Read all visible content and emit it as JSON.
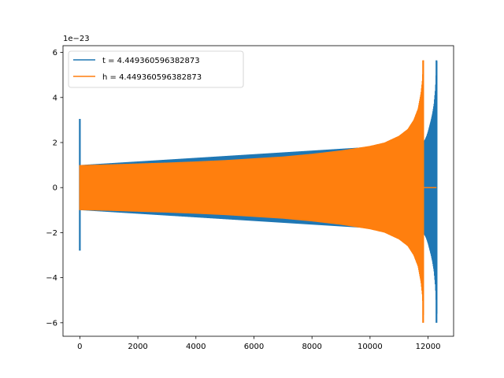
{
  "chart_data": {
    "type": "line",
    "title": "",
    "xlabel": "",
    "ylabel": "",
    "y_offset_text": "1e−23",
    "xlim": [
      -580,
      12880
    ],
    "ylim": [
      -6.6,
      6.3
    ],
    "x_ticks": [
      0,
      2000,
      4000,
      6000,
      8000,
      10000,
      12000
    ],
    "x_tick_labels": [
      "0",
      "2000",
      "4000",
      "6000",
      "8000",
      "10000",
      "12000"
    ],
    "y_ticks": [
      6,
      4,
      2,
      0,
      -2,
      -4,
      -6
    ],
    "y_tick_labels": [
      "6",
      "4",
      "2",
      "0",
      "−2",
      "−4",
      "−6"
    ],
    "grid": false,
    "legend_position": "top-left",
    "series": [
      {
        "name": "t = 4.449360596382873",
        "color": "#1f77b4",
        "envelope_x": [
          0,
          11810,
          11830,
          11850,
          11900,
          11950,
          12000,
          12050,
          12100,
          12150,
          12200,
          12250,
          12290
        ],
        "envelope_y": [
          1.0,
          1.95,
          2.0,
          2.05,
          2.15,
          2.3,
          2.5,
          2.75,
          3.0,
          3.3,
          3.7,
          4.4,
          5.6
        ],
        "spikes": [
          {
            "x": 0,
            "y_min": -2.8,
            "y_max": 3.05
          },
          {
            "x": 12290,
            "y_min": -6.0,
            "y_max": 5.65
          }
        ]
      },
      {
        "name": "h = 4.449360596382873",
        "color": "#ff7f0e",
        "envelope_x": [
          0,
          1000,
          2000,
          3000,
          4000,
          5000,
          6000,
          7000,
          8000,
          9000,
          10000,
          10500,
          11000,
          11300,
          11500,
          11650,
          11750,
          11800,
          11830
        ],
        "envelope_y": [
          1.0,
          1.03,
          1.07,
          1.11,
          1.16,
          1.22,
          1.3,
          1.38,
          1.5,
          1.65,
          1.85,
          2.0,
          2.3,
          2.6,
          3.0,
          3.5,
          4.2,
          4.8,
          5.65
        ],
        "spikes": [
          {
            "x": 11830,
            "y_min": -6.0,
            "y_max": 5.65
          }
        ],
        "tail_x": [
          11850,
          12290
        ],
        "tail_y": [
          0,
          0
        ]
      }
    ]
  }
}
